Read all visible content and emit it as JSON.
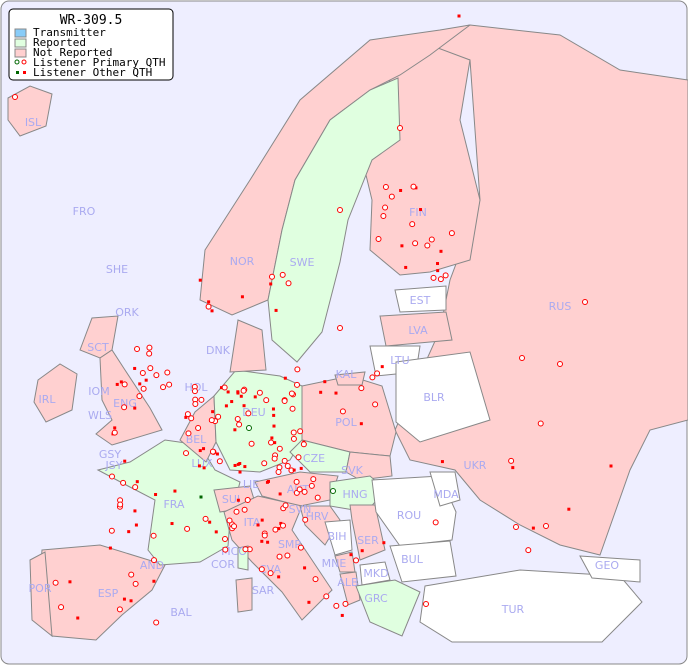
{
  "title": "WR-309.5",
  "legend": [
    {
      "label": "Transmitter",
      "color": "#88ccf8"
    },
    {
      "label": "Reported",
      "color": "#e0ffe0"
    },
    {
      "label": "Not Reported",
      "color": "#ffd0d0"
    },
    {
      "label": "Listener Primary QTH",
      "symbol": "circle"
    },
    {
      "label": "Listener Other QTH",
      "symbol": "square"
    }
  ],
  "colors": {
    "sea": "#eeeeff",
    "reported": "#e0ffe0",
    "not_reported": "#ffd0d0",
    "no_data": "#ffffff",
    "listener": "#ff0000",
    "listener_reported": "#006600",
    "label": "#aaaaf0"
  },
  "countries": {
    "reported": [
      "SWE",
      "FRA",
      "DEU",
      "CZE",
      "LIE",
      "HNG",
      "COR",
      "GRC",
      "LUX"
    ],
    "not_reported": [
      "ISL",
      "FRO",
      "SHE",
      "ORK",
      "NOR",
      "FIN",
      "RUS",
      "LVA",
      "DNK",
      "HOL",
      "IRL",
      "SCT",
      "IOM",
      "ENG",
      "WLS",
      "BEL",
      "POL",
      "UKR",
      "GSY",
      "JSY",
      "SVK",
      "AUT",
      "SUI",
      "SVN",
      "HRV",
      "ITA",
      "SER",
      "MCO",
      "SMR",
      "CVA",
      "MNE",
      "ALB",
      "AND",
      "ESP",
      "POR",
      "SAR",
      "BAL",
      "KAL"
    ],
    "no_data": [
      "EST",
      "LTU",
      "BLR",
      "MDA",
      "ROU",
      "BIH",
      "BUL",
      "MKD",
      "GEO",
      "TUR"
    ]
  },
  "labels": [
    "ISL",
    "FRO",
    "SHE",
    "ORK",
    "NOR",
    "SWE",
    "FIN",
    "RUS",
    "EST",
    "LVA",
    "LTU",
    "KAL",
    "BLR",
    "DNK",
    "HOL",
    "IRL",
    "SCT",
    "IOM",
    "ENG",
    "WLS",
    "BEL",
    "DEU",
    "POL",
    "UKR",
    "GSY",
    "JSY",
    "LUX",
    "CZE",
    "SVK",
    "MDA",
    "FRA",
    "LIE",
    "AUT",
    "HNG",
    "SUI",
    "SVN",
    "HRV",
    "ROU",
    "ITA",
    "BIH",
    "SER",
    "BUL",
    "MCO",
    "COR",
    "SMR",
    "CVA",
    "MNE",
    "ALB",
    "MKD",
    "GEO",
    "AND",
    "ESP",
    "POR",
    "SAR",
    "BAL",
    "GRC",
    "TUR"
  ]
}
